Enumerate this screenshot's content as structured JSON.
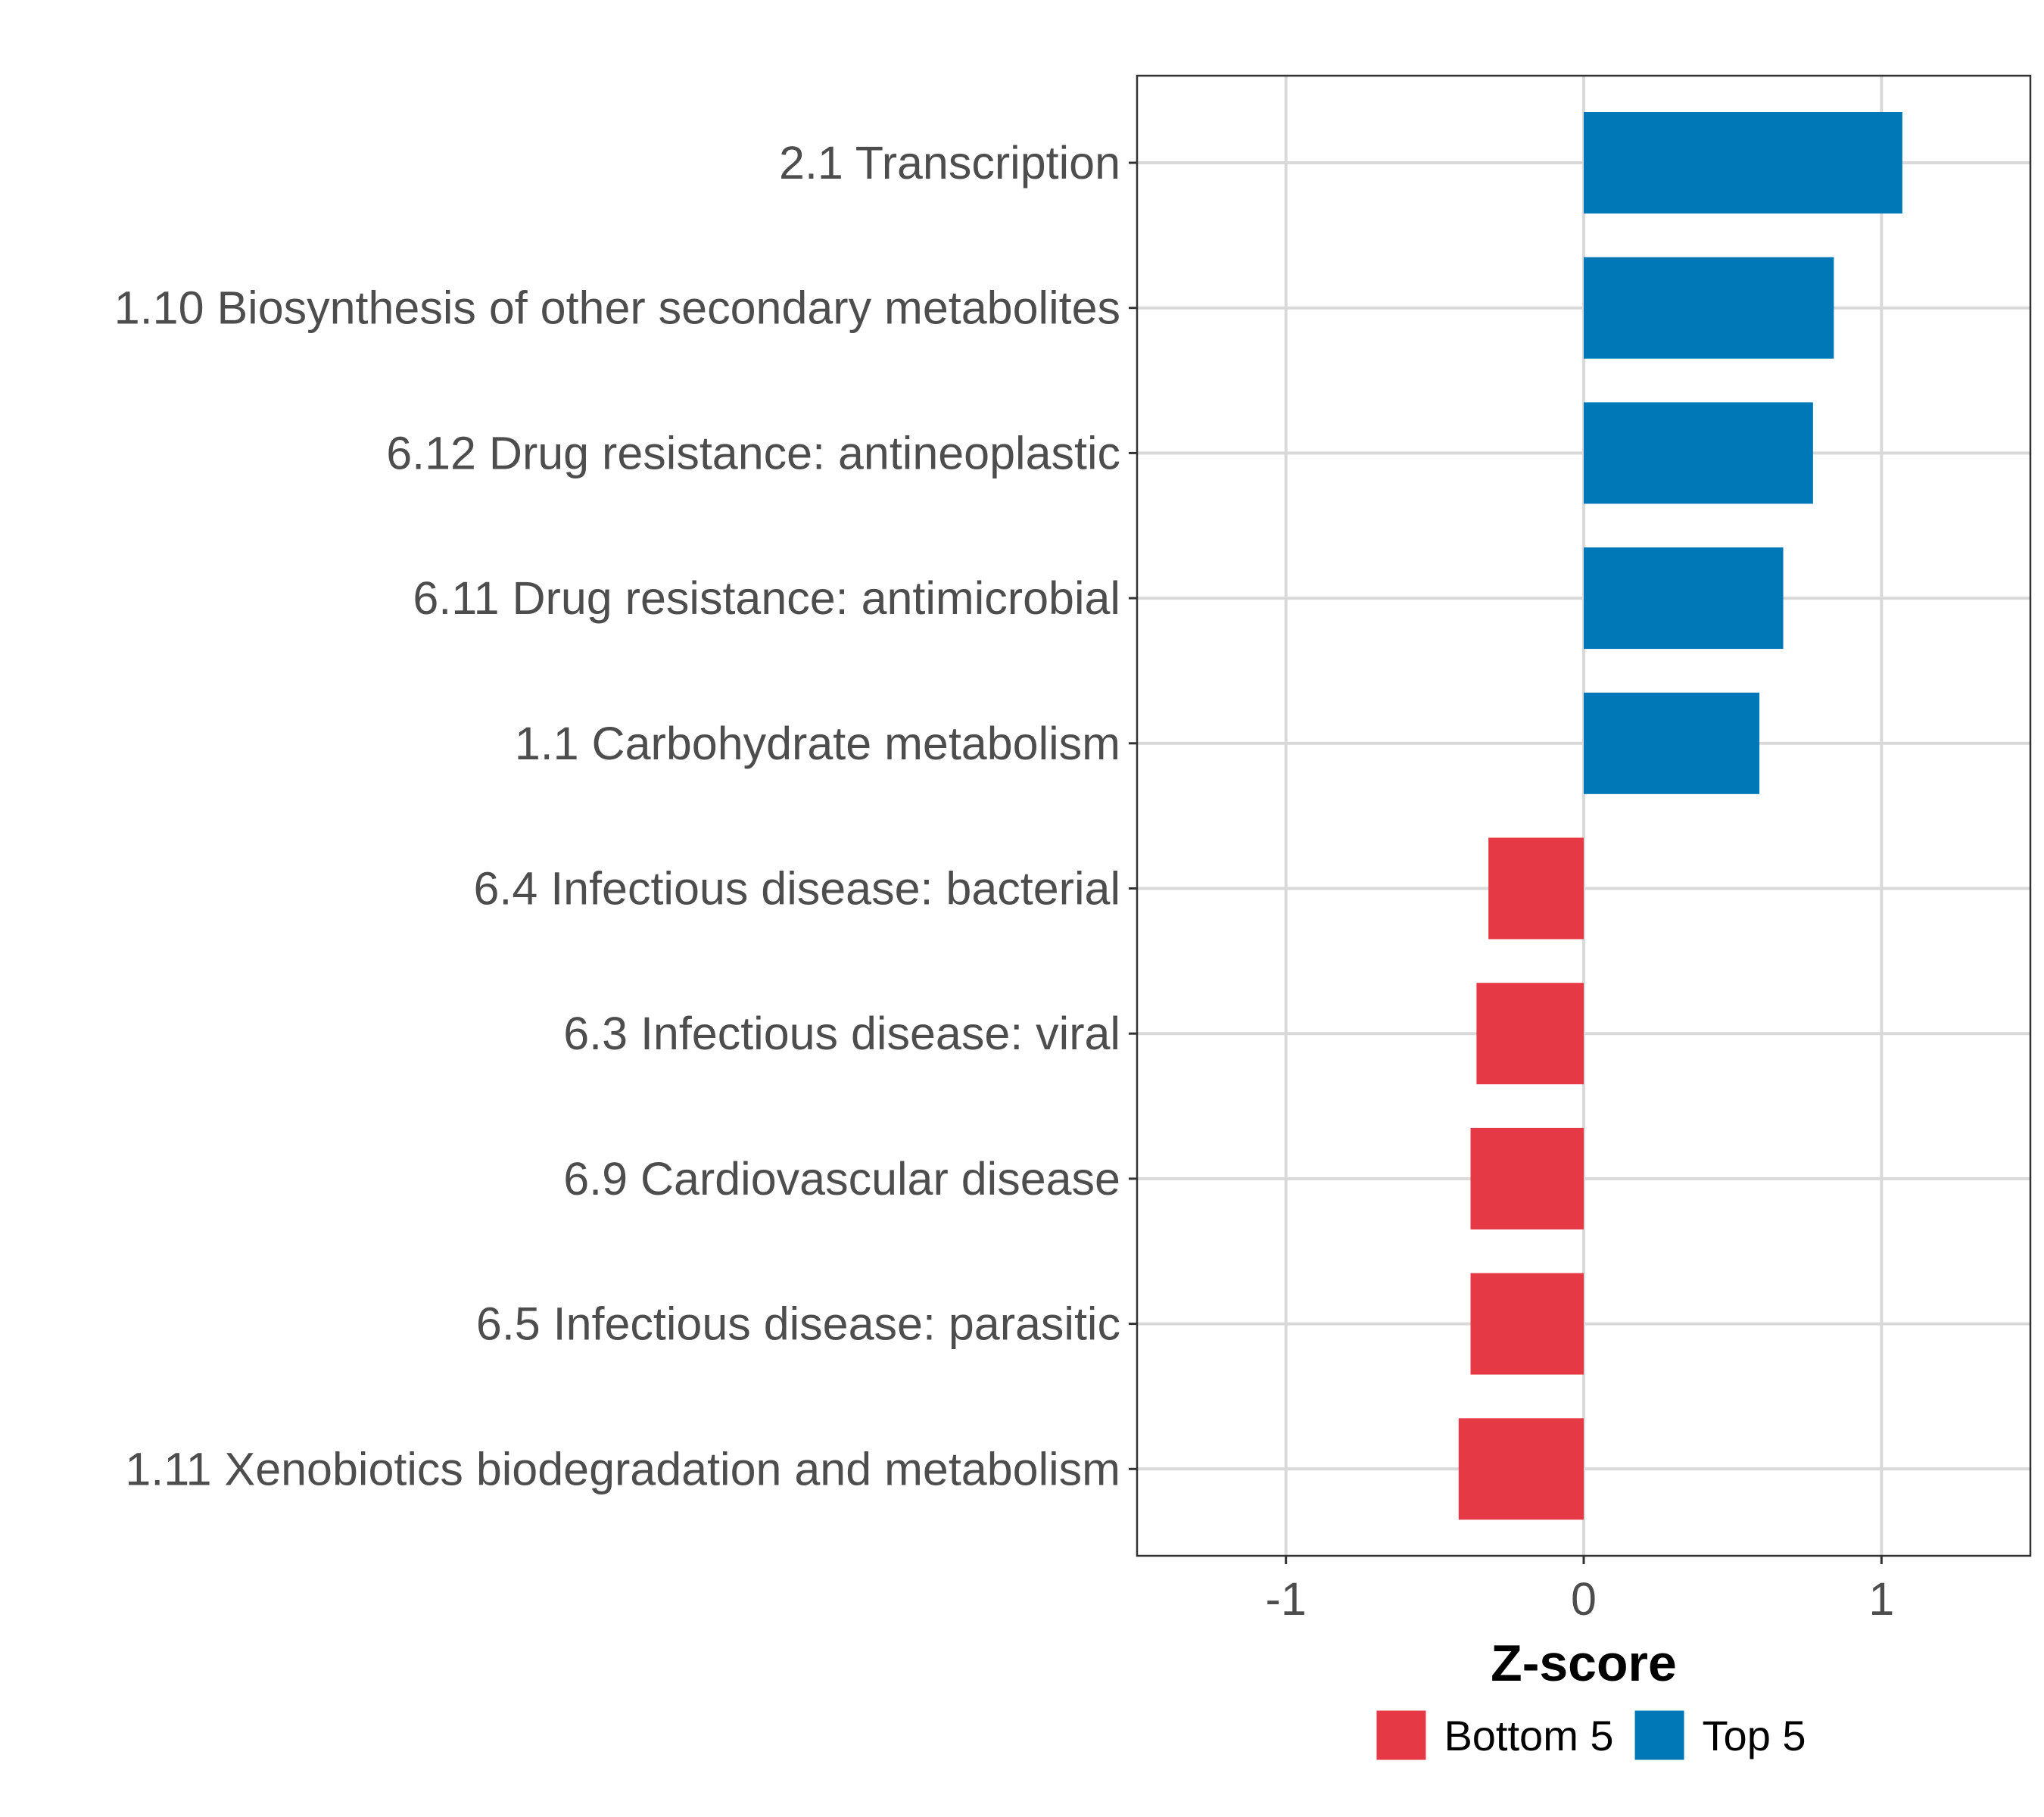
{
  "chart_data": {
    "type": "bar",
    "orientation": "horizontal",
    "title": "",
    "xlabel": "Z-score",
    "ylabel": "",
    "xlim": [
      -1.5,
      1.5
    ],
    "x_ticks": [
      -1,
      0,
      1
    ],
    "x_tick_labels": [
      "-1",
      "0",
      "1"
    ],
    "grid": true,
    "legend_position": "bottom",
    "categories": [
      "2.1 Transcription",
      "1.10 Biosynthesis of other secondary metabolites",
      "6.12 Drug resistance: antineoplastic",
      "6.11 Drug resistance: antimicrobial",
      "1.1 Carbohydrate metabolism",
      "6.4 Infectious disease: bacterial",
      "6.3 Infectious disease: viral",
      "6.9 Cardiovascular disease",
      "6.5 Infectious disease: parasitic",
      "1.11 Xenobiotics biodegradation and metabolism"
    ],
    "values": [
      1.07,
      0.84,
      0.77,
      0.67,
      0.59,
      -0.32,
      -0.36,
      -0.38,
      -0.38,
      -0.42
    ],
    "groups": [
      "Top 5",
      "Top 5",
      "Top 5",
      "Top 5",
      "Top 5",
      "Bottom 5",
      "Bottom 5",
      "Bottom 5",
      "Bottom 5",
      "Bottom 5"
    ],
    "legend": [
      {
        "name": "Bottom 5",
        "color": "#e63946"
      },
      {
        "name": "Top 5",
        "color": "#0077b6"
      }
    ]
  }
}
